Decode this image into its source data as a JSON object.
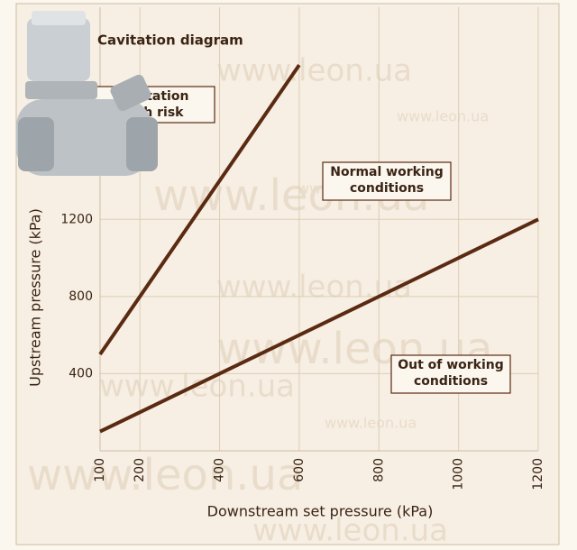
{
  "chart_data": {
    "type": "line",
    "title": "Cavitation diagram",
    "x_label": "Downstream set pressure (kPa)",
    "y_label": "Upstream pressure (kPa)",
    "series": [
      {
        "color": "#5a2a12",
        "x": [
          100,
          600
        ],
        "values": [
          500,
          2000
        ]
      },
      {
        "color": "#5a2a12",
        "x": [
          100,
          1200
        ],
        "values": [
          100,
          1200
        ]
      }
    ],
    "xlim": [
      100,
      1200
    ],
    "xticks": [
      100,
      200,
      400,
      600,
      800,
      1000,
      1200
    ],
    "ylim": [
      0,
      2300
    ],
    "yticks": [
      400,
      800,
      1200
    ],
    "grid": true,
    "annotations": [
      {
        "lines": [
          "Cavitation",
          "high risk"
        ]
      },
      {
        "lines": [
          "Normal working",
          "conditions"
        ]
      },
      {
        "lines": [
          "Out of working",
          "conditions"
        ]
      }
    ],
    "watermark": "www.leon.ua"
  }
}
